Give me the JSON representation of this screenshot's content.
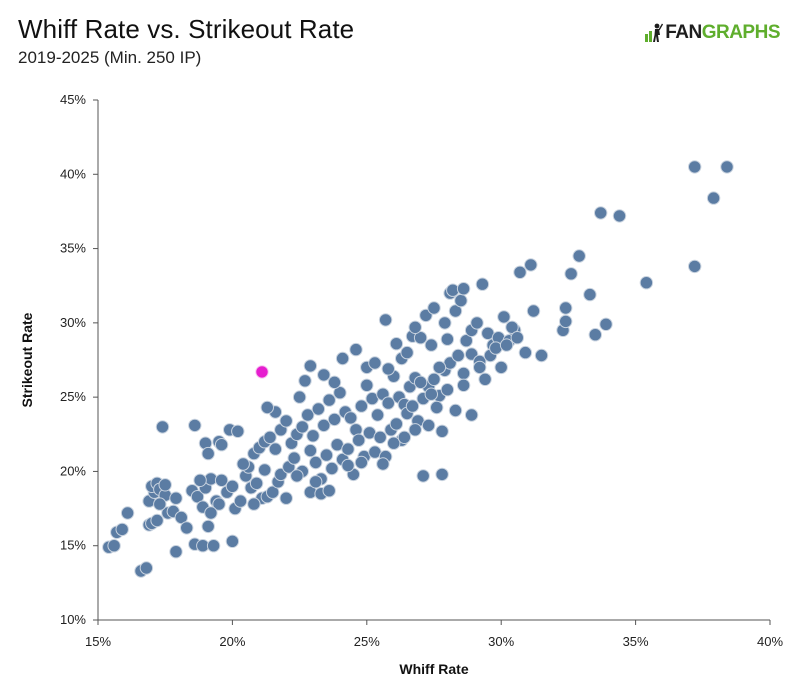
{
  "header": {
    "title": "Whiff Rate vs. Strikeout Rate",
    "subtitle": "2019-2025 (Min. 250 IP)",
    "logo_fan": "FAN",
    "logo_graphs": "GRAPHS"
  },
  "colors": {
    "point": "#5b7ca3",
    "point_stroke": "#c9d3df",
    "highlight": "#e61ecf",
    "axis": "#555555",
    "brand_green": "#5fae2d"
  },
  "chart_data": {
    "type": "scatter",
    "title": "Whiff Rate vs. Strikeout Rate",
    "subtitle": "2019-2025 (Min. 250 IP)",
    "xlabel": "Whiff Rate",
    "ylabel": "Strikeout Rate",
    "xlim": [
      15,
      40
    ],
    "ylim": [
      10,
      45
    ],
    "x_ticks": [
      15,
      20,
      25,
      30,
      35,
      40
    ],
    "y_ticks": [
      10,
      15,
      20,
      25,
      30,
      35,
      40,
      45
    ],
    "x_tick_labels": [
      "15%",
      "20%",
      "25%",
      "30%",
      "35%",
      "40%"
    ],
    "y_tick_labels": [
      "10%",
      "15%",
      "20%",
      "25%",
      "30%",
      "35%",
      "40%",
      "45%"
    ],
    "grid": false,
    "highlight": {
      "x": 21.1,
      "y": 26.7
    },
    "points": [
      [
        15.4,
        14.9
      ],
      [
        15.6,
        15.0
      ],
      [
        15.7,
        15.9
      ],
      [
        15.9,
        16.1
      ],
      [
        16.1,
        17.2
      ],
      [
        16.6,
        13.3
      ],
      [
        16.8,
        13.5
      ],
      [
        16.9,
        16.4
      ],
      [
        17.0,
        16.5
      ],
      [
        17.2,
        16.7
      ],
      [
        16.9,
        18.0
      ],
      [
        17.1,
        18.6
      ],
      [
        17.0,
        19.0
      ],
      [
        17.2,
        19.2
      ],
      [
        17.3,
        18.8
      ],
      [
        17.5,
        18.4
      ],
      [
        17.6,
        17.2
      ],
      [
        17.3,
        17.8
      ],
      [
        17.8,
        17.3
      ],
      [
        17.5,
        19.1
      ],
      [
        17.9,
        18.2
      ],
      [
        18.1,
        16.9
      ],
      [
        17.9,
        14.6
      ],
      [
        18.3,
        16.2
      ],
      [
        18.6,
        15.1
      ],
      [
        18.9,
        15.0
      ],
      [
        19.3,
        15.0
      ],
      [
        19.1,
        16.3
      ],
      [
        20.0,
        15.3
      ],
      [
        17.4,
        23.0
      ],
      [
        18.6,
        23.1
      ],
      [
        19.0,
        21.9
      ],
      [
        19.1,
        21.2
      ],
      [
        19.5,
        22.0
      ],
      [
        19.6,
        21.8
      ],
      [
        19.9,
        22.8
      ],
      [
        20.2,
        22.7
      ],
      [
        18.5,
        18.7
      ],
      [
        18.7,
        18.3
      ],
      [
        18.9,
        17.6
      ],
      [
        19.0,
        18.9
      ],
      [
        19.2,
        19.5
      ],
      [
        19.4,
        18.0
      ],
      [
        19.6,
        19.4
      ],
      [
        19.8,
        18.6
      ],
      [
        20.0,
        19.0
      ],
      [
        20.1,
        17.5
      ],
      [
        19.5,
        17.8
      ],
      [
        19.2,
        17.2
      ],
      [
        18.8,
        19.4
      ],
      [
        20.3,
        18.0
      ],
      [
        20.5,
        19.7
      ],
      [
        20.7,
        18.9
      ],
      [
        20.9,
        19.2
      ],
      [
        21.1,
        18.2
      ],
      [
        20.8,
        17.8
      ],
      [
        21.3,
        18.3
      ],
      [
        21.5,
        18.6
      ],
      [
        21.7,
        19.3
      ],
      [
        22.0,
        18.2
      ],
      [
        21.2,
        20.1
      ],
      [
        20.6,
        20.3
      ],
      [
        21.8,
        19.8
      ],
      [
        20.4,
        20.5
      ],
      [
        20.8,
        21.2
      ],
      [
        21.0,
        21.6
      ],
      [
        21.2,
        22.0
      ],
      [
        21.4,
        22.3
      ],
      [
        21.6,
        21.5
      ],
      [
        21.8,
        22.8
      ],
      [
        22.0,
        23.4
      ],
      [
        22.2,
        21.9
      ],
      [
        22.4,
        22.5
      ],
      [
        22.6,
        23.0
      ],
      [
        22.8,
        23.8
      ],
      [
        23.0,
        22.4
      ],
      [
        23.2,
        24.2
      ],
      [
        23.4,
        23.1
      ],
      [
        23.6,
        24.8
      ],
      [
        23.8,
        23.5
      ],
      [
        24.0,
        25.3
      ],
      [
        24.2,
        24.0
      ],
      [
        24.4,
        23.6
      ],
      [
        24.6,
        22.8
      ],
      [
        24.8,
        24.4
      ],
      [
        25.0,
        25.8
      ],
      [
        25.2,
        24.9
      ],
      [
        25.4,
        23.8
      ],
      [
        25.6,
        25.2
      ],
      [
        25.8,
        24.6
      ],
      [
        26.0,
        26.4
      ],
      [
        26.2,
        25.0
      ],
      [
        26.4,
        24.5
      ],
      [
        26.6,
        25.7
      ],
      [
        26.8,
        26.3
      ],
      [
        21.6,
        24.0
      ],
      [
        21.3,
        24.3
      ],
      [
        22.5,
        25.0
      ],
      [
        22.7,
        26.1
      ],
      [
        22.9,
        27.1
      ],
      [
        23.4,
        26.5
      ],
      [
        23.8,
        26.0
      ],
      [
        24.1,
        27.6
      ],
      [
        24.6,
        28.2
      ],
      [
        25.0,
        27.0
      ],
      [
        25.3,
        27.3
      ],
      [
        25.8,
        26.9
      ],
      [
        26.3,
        27.6
      ],
      [
        26.5,
        28.0
      ],
      [
        26.1,
        28.6
      ],
      [
        26.7,
        29.1
      ],
      [
        22.1,
        20.3
      ],
      [
        22.3,
        20.9
      ],
      [
        22.6,
        20.0
      ],
      [
        22.9,
        21.4
      ],
      [
        23.1,
        20.6
      ],
      [
        23.3,
        19.5
      ],
      [
        23.5,
        21.1
      ],
      [
        23.7,
        20.2
      ],
      [
        23.9,
        21.8
      ],
      [
        24.1,
        20.8
      ],
      [
        24.3,
        21.5
      ],
      [
        24.5,
        19.8
      ],
      [
        24.7,
        22.1
      ],
      [
        24.9,
        21.0
      ],
      [
        25.1,
        22.6
      ],
      [
        25.3,
        21.3
      ],
      [
        25.5,
        22.3
      ],
      [
        25.7,
        21.0
      ],
      [
        25.9,
        22.8
      ],
      [
        26.1,
        23.2
      ],
      [
        26.3,
        22.1
      ],
      [
        26.5,
        23.9
      ],
      [
        26.7,
        24.4
      ],
      [
        26.9,
        23.4
      ],
      [
        27.1,
        24.9
      ],
      [
        27.3,
        25.7
      ],
      [
        27.5,
        26.2
      ],
      [
        27.7,
        25.1
      ],
      [
        27.9,
        26.8
      ],
      [
        28.1,
        27.3
      ],
      [
        22.9,
        18.6
      ],
      [
        23.3,
        18.5
      ],
      [
        23.6,
        18.7
      ],
      [
        23.1,
        19.3
      ],
      [
        22.4,
        19.7
      ],
      [
        24.3,
        20.4
      ],
      [
        24.8,
        20.6
      ],
      [
        25.6,
        20.5
      ],
      [
        26.0,
        21.9
      ],
      [
        26.4,
        22.3
      ],
      [
        26.8,
        22.8
      ],
      [
        27.3,
        23.1
      ],
      [
        27.8,
        22.7
      ],
      [
        27.1,
        19.7
      ],
      [
        27.8,
        19.8
      ],
      [
        27.0,
        29.0
      ],
      [
        27.2,
        30.5
      ],
      [
        27.5,
        31.0
      ],
      [
        27.9,
        30.0
      ],
      [
        28.1,
        32.0
      ],
      [
        28.3,
        30.8
      ],
      [
        28.5,
        31.5
      ],
      [
        28.7,
        28.8
      ],
      [
        28.9,
        29.5
      ],
      [
        29.1,
        30.0
      ],
      [
        29.3,
        32.6
      ],
      [
        29.5,
        29.3
      ],
      [
        29.7,
        28.5
      ],
      [
        29.9,
        29.0
      ],
      [
        30.1,
        30.4
      ],
      [
        30.3,
        28.8
      ],
      [
        30.5,
        29.5
      ],
      [
        30.7,
        33.4
      ],
      [
        30.9,
        28.0
      ],
      [
        31.1,
        33.9
      ],
      [
        31.2,
        30.8
      ],
      [
        27.4,
        28.5
      ],
      [
        27.7,
        27.0
      ],
      [
        28.0,
        28.9
      ],
      [
        28.4,
        27.8
      ],
      [
        28.6,
        26.6
      ],
      [
        28.9,
        27.9
      ],
      [
        29.2,
        27.4
      ],
      [
        29.4,
        26.2
      ],
      [
        29.6,
        27.8
      ],
      [
        29.8,
        28.3
      ],
      [
        30.0,
        27.0
      ],
      [
        30.2,
        28.5
      ],
      [
        30.4,
        29.7
      ],
      [
        30.6,
        29.0
      ],
      [
        27.0,
        26.0
      ],
      [
        27.4,
        25.2
      ],
      [
        27.6,
        24.3
      ],
      [
        28.0,
        25.5
      ],
      [
        28.3,
        24.1
      ],
      [
        28.6,
        25.8
      ],
      [
        28.9,
        23.8
      ],
      [
        29.2,
        27.0
      ],
      [
        25.7,
        30.2
      ],
      [
        26.8,
        29.7
      ],
      [
        28.2,
        32.2
      ],
      [
        28.6,
        32.3
      ],
      [
        31.5,
        27.8
      ],
      [
        32.3,
        29.5
      ],
      [
        32.4,
        30.1
      ],
      [
        32.4,
        31.0
      ],
      [
        32.6,
        33.3
      ],
      [
        32.9,
        34.5
      ],
      [
        33.3,
        31.9
      ],
      [
        33.5,
        29.2
      ],
      [
        33.9,
        29.9
      ],
      [
        33.7,
        37.4
      ],
      [
        34.4,
        37.2
      ],
      [
        35.4,
        32.7
      ],
      [
        37.2,
        40.5
      ],
      [
        38.4,
        40.5
      ],
      [
        37.9,
        38.4
      ],
      [
        37.2,
        33.8
      ]
    ]
  }
}
